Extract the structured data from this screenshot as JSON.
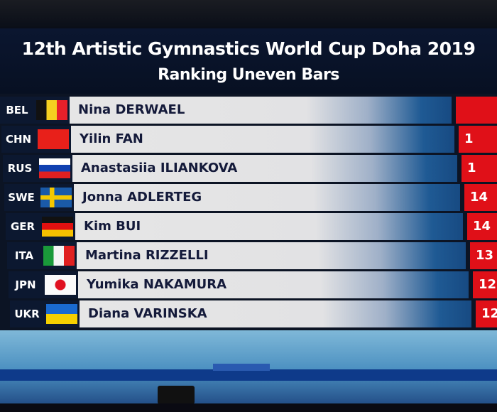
{
  "header": {
    "title": "12th Artistic Gymnastics World Cup Doha 2019",
    "subtitle": "Ranking Uneven Bars"
  },
  "rows": [
    {
      "code": "BEL",
      "flag": "belgium",
      "name": "Nina DERWAEL",
      "score": ""
    },
    {
      "code": "CHN",
      "flag": "china",
      "name": "Yilin FAN",
      "score": "1"
    },
    {
      "code": "RUS",
      "flag": "russia",
      "name": "Anastasiia ILIANKOVA",
      "score": "1"
    },
    {
      "code": "SWE",
      "flag": "sweden",
      "name": "Jonna ADLERTEG",
      "score": "14"
    },
    {
      "code": "GER",
      "flag": "germany",
      "name": "Kim BUI",
      "score": "14"
    },
    {
      "code": "ITA",
      "flag": "italy",
      "name": "Martina RIZZELLI",
      "score": "13"
    },
    {
      "code": "JPN",
      "flag": "japan",
      "name": "Yumika NAKAMURA",
      "score": "12."
    },
    {
      "code": "UKR",
      "flag": "ukraine",
      "name": "Diana VARINSKA",
      "score": "12."
    }
  ],
  "colors": {
    "score_bg": "#e01018",
    "panel": "#0c1830"
  }
}
